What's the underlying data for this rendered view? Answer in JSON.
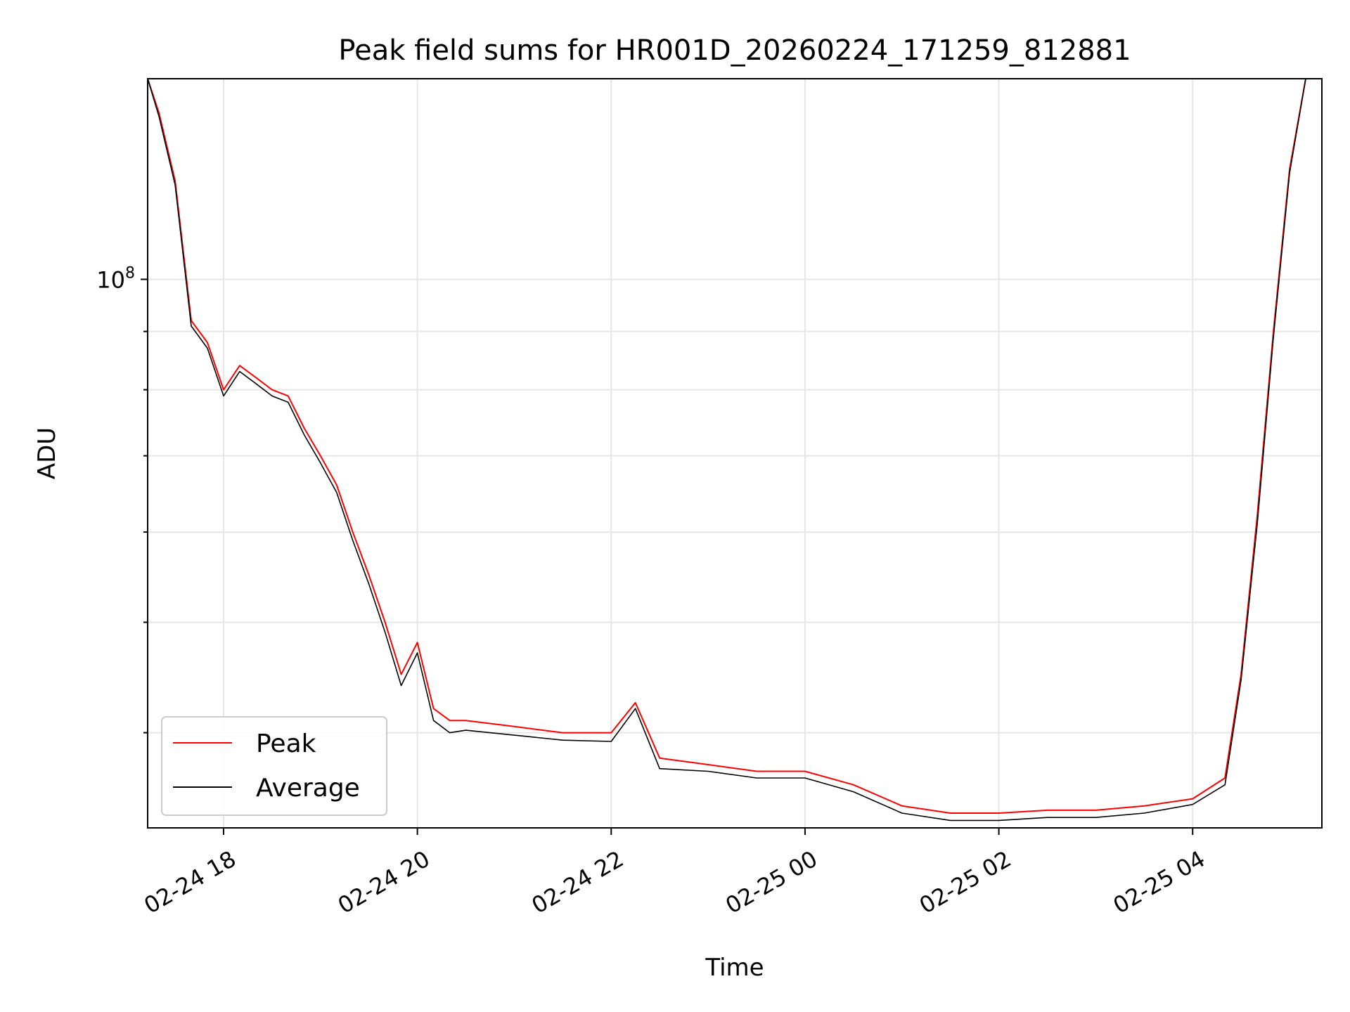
{
  "chart_data": {
    "type": "line",
    "title": "Peak field sums for HR001D_20260224_171259_812881",
    "xlabel": "Time",
    "ylabel": "ADU",
    "yscale": "log",
    "grid": true,
    "legend_position": "lower-left",
    "xlim": [
      "2026-02-24 17:13",
      "2026-02-25 05:20"
    ],
    "ylim": [
      33000000,
      150000000
    ],
    "x_ticks": [
      "02-24 18",
      "02-24 20",
      "02-24 22",
      "02-25 00",
      "02-25 02",
      "02-25 04"
    ],
    "x_tick_times": [
      "2026-02-24 18:00",
      "2026-02-24 20:00",
      "2026-02-24 22:00",
      "2026-02-25 00:00",
      "2026-02-25 02:00",
      "2026-02-25 04:00"
    ],
    "y_ticks": [
      {
        "label_base": "10",
        "label_exp": "8",
        "value": 100000000
      }
    ],
    "series": [
      {
        "name": "Peak",
        "color": "#ff0000",
        "x": [
          "2026-02-24 17:13",
          "2026-02-24 17:20",
          "2026-02-24 17:30",
          "2026-02-24 17:40",
          "2026-02-24 17:50",
          "2026-02-24 18:00",
          "2026-02-24 18:10",
          "2026-02-24 18:20",
          "2026-02-24 18:30",
          "2026-02-24 18:40",
          "2026-02-24 18:50",
          "2026-02-24 19:00",
          "2026-02-24 19:10",
          "2026-02-24 19:20",
          "2026-02-24 19:30",
          "2026-02-24 19:40",
          "2026-02-24 19:50",
          "2026-02-24 20:00",
          "2026-02-24 20:10",
          "2026-02-24 20:20",
          "2026-02-24 20:30",
          "2026-02-24 21:00",
          "2026-02-24 21:30",
          "2026-02-24 22:00",
          "2026-02-24 22:15",
          "2026-02-24 22:30",
          "2026-02-24 23:00",
          "2026-02-24 23:30",
          "2026-02-25 00:00",
          "2026-02-25 00:30",
          "2026-02-25 01:00",
          "2026-02-25 01:30",
          "2026-02-25 02:00",
          "2026-02-25 02:30",
          "2026-02-25 03:00",
          "2026-02-25 03:30",
          "2026-02-25 04:00",
          "2026-02-25 04:20",
          "2026-02-25 04:30",
          "2026-02-25 04:40",
          "2026-02-25 04:50",
          "2026-02-25 05:00",
          "2026-02-25 05:10",
          "2026-02-25 05:20"
        ],
        "y": [
          150000000,
          140000000,
          122000000,
          92000000,
          88000000,
          80000000,
          84000000,
          82000000,
          80000000,
          79000000,
          74000000,
          70000000,
          66000000,
          60000000,
          55000000,
          50000000,
          45000000,
          48000000,
          42000000,
          41000000,
          41000000,
          40500000,
          40000000,
          40000000,
          42500000,
          38000000,
          37500000,
          37000000,
          37000000,
          36000000,
          34500000,
          34000000,
          34000000,
          34200000,
          34200000,
          34500000,
          35000000,
          36500000,
          45000000,
          62000000,
          90000000,
          125000000,
          150000000,
          150000000
        ]
      },
      {
        "name": "Average",
        "color": "#000000",
        "x": [
          "2026-02-24 17:13",
          "2026-02-24 17:20",
          "2026-02-24 17:30",
          "2026-02-24 17:40",
          "2026-02-24 17:50",
          "2026-02-24 18:00",
          "2026-02-24 18:10",
          "2026-02-24 18:20",
          "2026-02-24 18:30",
          "2026-02-24 18:40",
          "2026-02-24 18:50",
          "2026-02-24 19:00",
          "2026-02-24 19:10",
          "2026-02-24 19:20",
          "2026-02-24 19:30",
          "2026-02-24 19:40",
          "2026-02-24 19:50",
          "2026-02-24 20:00",
          "2026-02-24 20:10",
          "2026-02-24 20:20",
          "2026-02-24 20:30",
          "2026-02-24 21:00",
          "2026-02-24 21:30",
          "2026-02-24 22:00",
          "2026-02-24 22:15",
          "2026-02-24 22:30",
          "2026-02-24 23:00",
          "2026-02-24 23:30",
          "2026-02-25 00:00",
          "2026-02-25 00:30",
          "2026-02-25 01:00",
          "2026-02-25 01:30",
          "2026-02-25 02:00",
          "2026-02-25 02:30",
          "2026-02-25 03:00",
          "2026-02-25 03:30",
          "2026-02-25 04:00",
          "2026-02-25 04:20",
          "2026-02-25 04:30",
          "2026-02-25 04:40",
          "2026-02-25 04:50",
          "2026-02-25 05:00",
          "2026-02-25 05:10",
          "2026-02-25 05:20"
        ],
        "y": [
          150000000,
          139000000,
          121000000,
          91000000,
          87000000,
          79000000,
          83000000,
          81000000,
          79000000,
          78000000,
          73000000,
          69000000,
          65000000,
          59000000,
          54000000,
          49000000,
          44000000,
          47000000,
          41000000,
          40000000,
          40200000,
          39800000,
          39400000,
          39300000,
          42000000,
          37200000,
          37000000,
          36500000,
          36500000,
          35500000,
          34000000,
          33500000,
          33500000,
          33700000,
          33700000,
          34000000,
          34600000,
          36000000,
          44500000,
          61000000,
          89000000,
          124000000,
          150000000,
          150000000
        ]
      }
    ]
  }
}
